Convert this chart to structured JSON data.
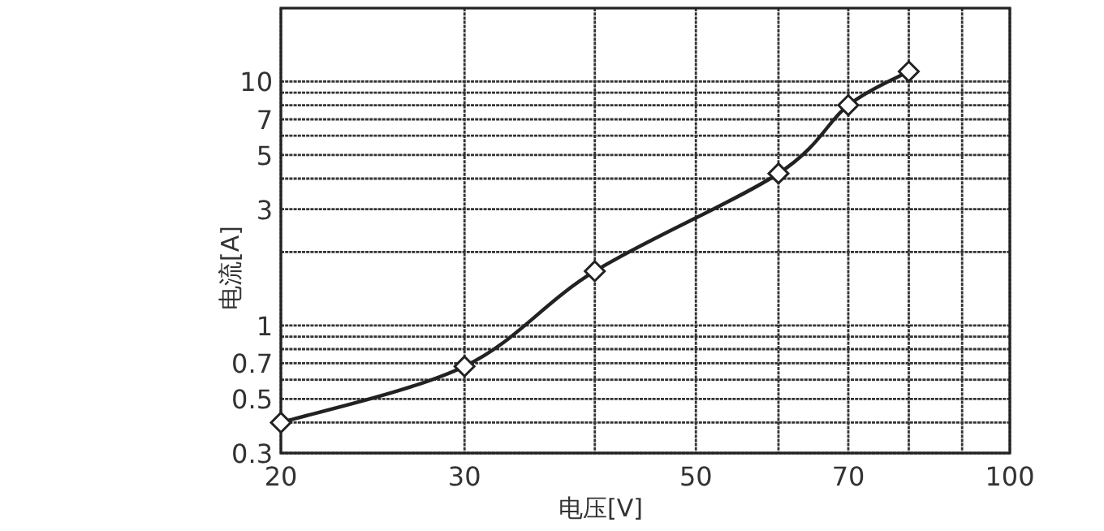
{
  "chart_data": {
    "type": "line",
    "xlabel": "电压[V]",
    "ylabel": "电流[A]",
    "x": [
      20,
      30,
      40,
      60,
      70,
      80
    ],
    "series": [
      {
        "color": "#222222",
        "values": [
          0.4,
          0.68,
          1.67,
          4.2,
          8,
          11
        ]
      }
    ],
    "log": "xy",
    "xlim": [
      20,
      100
    ],
    "ylim": [
      0.3,
      20
    ],
    "xticks": [
      20,
      30,
      {
        "value": 40,
        "label": null
      },
      50,
      {
        "value": 60,
        "label": null
      },
      70,
      {
        "value": 80,
        "label": null
      },
      {
        "value": 90,
        "label": null
      },
      100
    ],
    "yticks": [
      0.3,
      {
        "value": 0.4,
        "label": null
      },
      0.5,
      {
        "value": 0.6,
        "label": null
      },
      0.7,
      {
        "value": 0.8,
        "label": null
      },
      {
        "value": 0.9,
        "label": null
      },
      1,
      {
        "value": 2,
        "label": null
      },
      3,
      {
        "value": 4,
        "label": null
      },
      5,
      {
        "value": 6,
        "label": null
      },
      7,
      {
        "value": 8,
        "label": null
      },
      {
        "value": 9,
        "label": null
      },
      10
    ],
    "grid": true,
    "marker": "diamond",
    "line_style": "solid"
  }
}
